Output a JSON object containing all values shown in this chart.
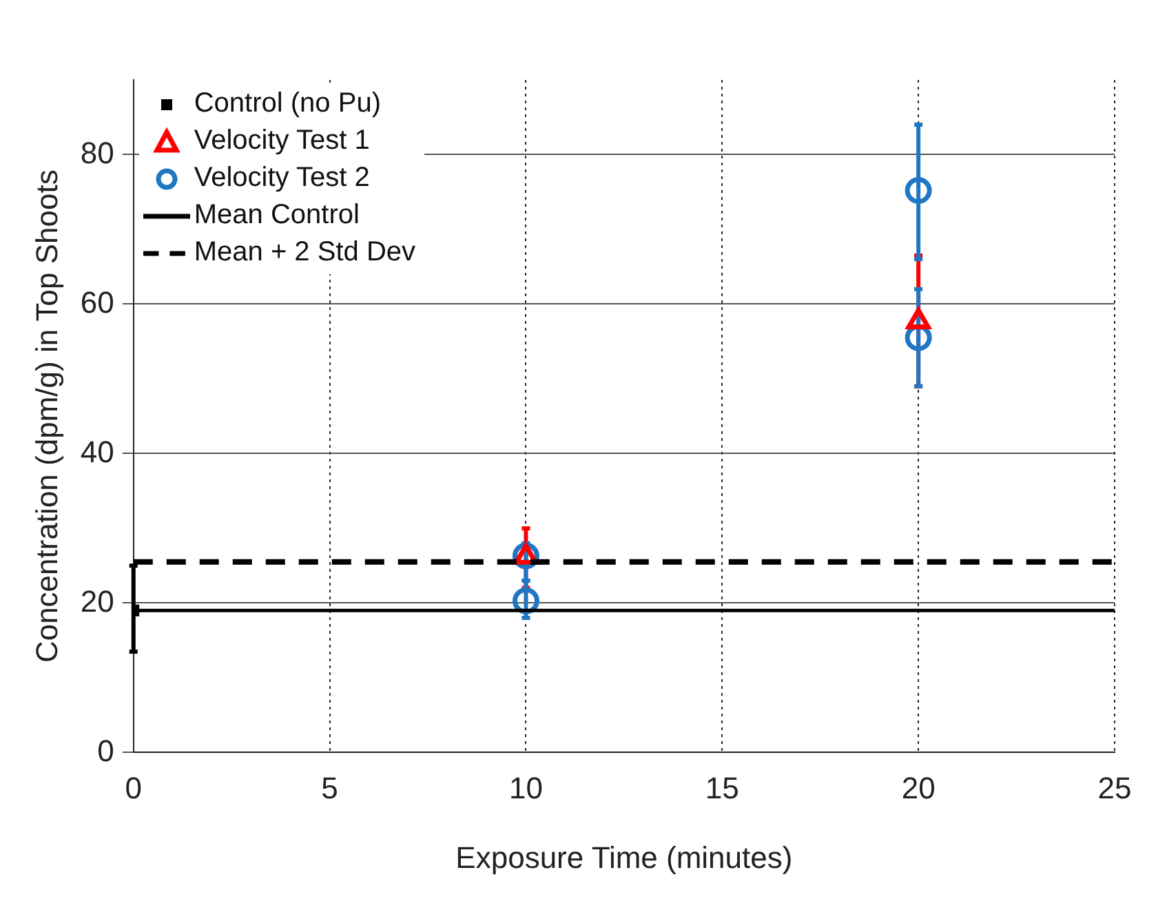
{
  "chart_data": {
    "type": "scatter",
    "xlabel": "Exposure Time (minutes)",
    "ylabel": "Concentration (dpm/g) in Top Shoots",
    "xlim": [
      0,
      25
    ],
    "xticks": [
      0,
      5,
      10,
      15,
      20,
      25
    ],
    "ylim": [
      0,
      90
    ],
    "yticks": [
      0,
      20,
      40,
      60,
      80
    ],
    "grid": true,
    "legend": "top left",
    "series": [
      {
        "name": "Control (no Pu)",
        "color": "#000000",
        "marker": "square",
        "x": [
          0
        ],
        "values": [
          19
        ],
        "errors": [
          [
            13.5,
            25
          ]
        ]
      },
      {
        "name": "Velocity Test 1",
        "color": "#ff0000",
        "marker": "triangle",
        "x": [
          10,
          20
        ],
        "values": [
          26.2,
          57.7
        ],
        "errors": [
          [
            22,
            30
          ],
          [
            49,
            66.5
          ]
        ]
      },
      {
        "name": "Velocity Test 2",
        "color": "#1f77c4",
        "marker": "circle",
        "x": [
          10,
          10,
          20,
          20
        ],
        "values": [
          26.3,
          20.3,
          75.2,
          55.5
        ],
        "errors": [
          [
            23,
            28
          ],
          [
            18,
            23
          ],
          [
            66,
            84
          ],
          [
            49,
            62
          ]
        ]
      }
    ],
    "ref_lines": [
      {
        "axis": "y",
        "value": 19,
        "label": "Mean Control",
        "color": "#000000",
        "line_style": "solid"
      },
      {
        "axis": "y",
        "value": 25.5,
        "label": "Mean + 2 Std Dev",
        "color": "#000000",
        "line_style": "dashed"
      }
    ]
  }
}
